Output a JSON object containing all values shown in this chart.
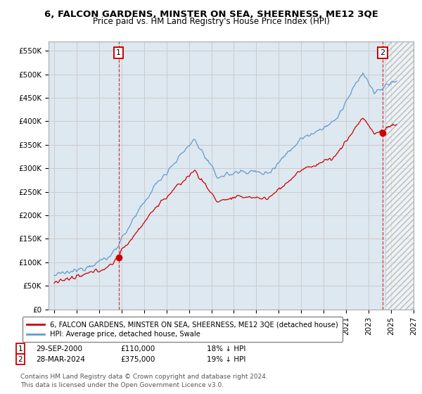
{
  "title": "6, FALCON GARDENS, MINSTER ON SEA, SHEERNESS, ME12 3QE",
  "subtitle": "Price paid vs. HM Land Registry's House Price Index (HPI)",
  "ylim": [
    0,
    570000
  ],
  "xlim_start": 1994.5,
  "xlim_end": 2027.0,
  "yticks": [
    0,
    50000,
    100000,
    150000,
    200000,
    250000,
    300000,
    350000,
    400000,
    450000,
    500000,
    550000
  ],
  "ytick_labels": [
    "£0",
    "£50K",
    "£100K",
    "£150K",
    "£200K",
    "£250K",
    "£300K",
    "£350K",
    "£400K",
    "£450K",
    "£500K",
    "£550K"
  ],
  "sale1_x": 2000.75,
  "sale1_y": 110000,
  "sale2_x": 2024.24,
  "sale2_y": 375000,
  "red_line_color": "#cc0000",
  "blue_line_color": "#6699cc",
  "marker_color": "#cc0000",
  "grid_color": "#cccccc",
  "bg_color": "#dde8f0",
  "hatch_future_start": 2024.5,
  "legend_line1": "6, FALCON GARDENS, MINSTER ON SEA, SHEERNESS, ME12 3QE (detached house)",
  "legend_line2": "HPI: Average price, detached house, Swale",
  "note1_date": "29-SEP-2000",
  "note1_price": "£110,000",
  "note1_hpi": "18% ↓ HPI",
  "note2_date": "28-MAR-2024",
  "note2_price": "£375,000",
  "note2_hpi": "19% ↓ HPI",
  "footer": "Contains HM Land Registry data © Crown copyright and database right 2024.\nThis data is licensed under the Open Government Licence v3.0."
}
